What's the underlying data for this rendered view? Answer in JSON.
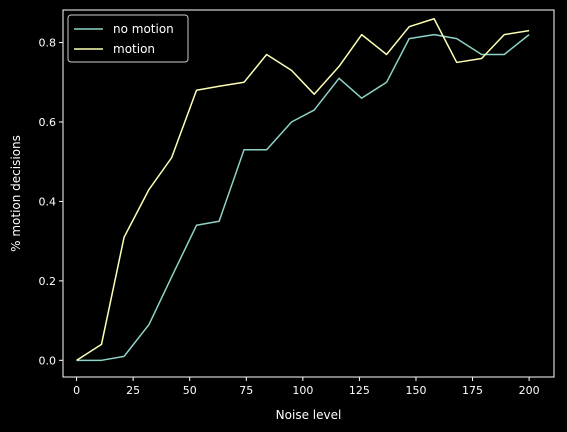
{
  "chart_data": {
    "type": "line",
    "title": "",
    "xlabel": "Noise level",
    "ylabel": "% motion decisions",
    "xlim": [
      -6,
      211
    ],
    "ylim": [
      -0.042,
      0.882
    ],
    "xticks": [
      0,
      25,
      50,
      75,
      100,
      125,
      150,
      175,
      200
    ],
    "yticks": [
      0.0,
      0.2,
      0.4,
      0.6,
      0.8
    ],
    "xtick_labels": [
      "0",
      "25",
      "50",
      "75",
      "100",
      "125",
      "150",
      "175",
      "200"
    ],
    "ytick_labels": [
      "0.0",
      "0.2",
      "0.4",
      "0.6",
      "0.8"
    ],
    "grid": false,
    "legend": "top-left",
    "x": [
      0,
      11,
      21,
      32,
      42,
      53,
      63,
      74,
      84,
      95,
      105,
      116,
      126,
      137,
      147,
      158,
      168,
      179,
      189,
      200
    ],
    "series": [
      {
        "name": "no motion",
        "color": "#8dd3c7",
        "values": [
          0.0,
          0.0,
          0.01,
          0.09,
          0.21,
          0.34,
          0.35,
          0.53,
          0.53,
          0.6,
          0.63,
          0.71,
          0.66,
          0.7,
          0.81,
          0.82,
          0.81,
          0.77,
          0.77,
          0.82
        ]
      },
      {
        "name": "motion",
        "color": "#feffb3",
        "values": [
          0.0,
          0.04,
          0.31,
          0.43,
          0.51,
          0.68,
          0.69,
          0.7,
          0.77,
          0.73,
          0.67,
          0.74,
          0.82,
          0.77,
          0.84,
          0.86,
          0.75,
          0.76,
          0.82,
          0.83
        ]
      }
    ]
  }
}
